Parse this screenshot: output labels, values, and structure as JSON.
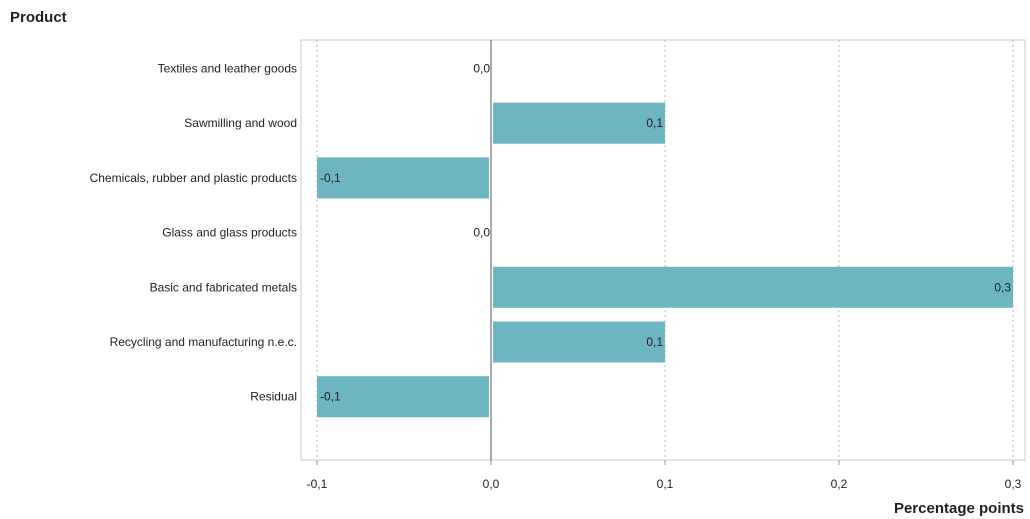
{
  "chart_data": {
    "type": "bar",
    "orientation": "horizontal",
    "ylabel": "Product",
    "xlabel": "Percentage points",
    "categories": [
      "Textiles and leather goods",
      "Sawmilling and wood",
      "Chemicals, rubber and plastic products",
      "Glass and glass products",
      "Basic and fabricated metals",
      "Recycling and manufacturing n.e.c.",
      "Residual"
    ],
    "values": [
      0.0,
      0.1,
      -0.1,
      0.0,
      0.3,
      0.1,
      -0.1
    ],
    "value_labels": [
      "0,0",
      "0,1",
      "-0,1",
      "0,0",
      "0,3",
      "0,1",
      "-0,1"
    ],
    "xlim": [
      -0.1,
      0.3
    ],
    "xticks": [
      -0.1,
      0.0,
      0.1,
      0.2,
      0.3
    ],
    "xtick_labels": [
      "-0,1",
      "0,0",
      "0,1",
      "0,2",
      "0,3"
    ],
    "grid": "vertical dotted",
    "bar_color": "#6db6bf"
  }
}
